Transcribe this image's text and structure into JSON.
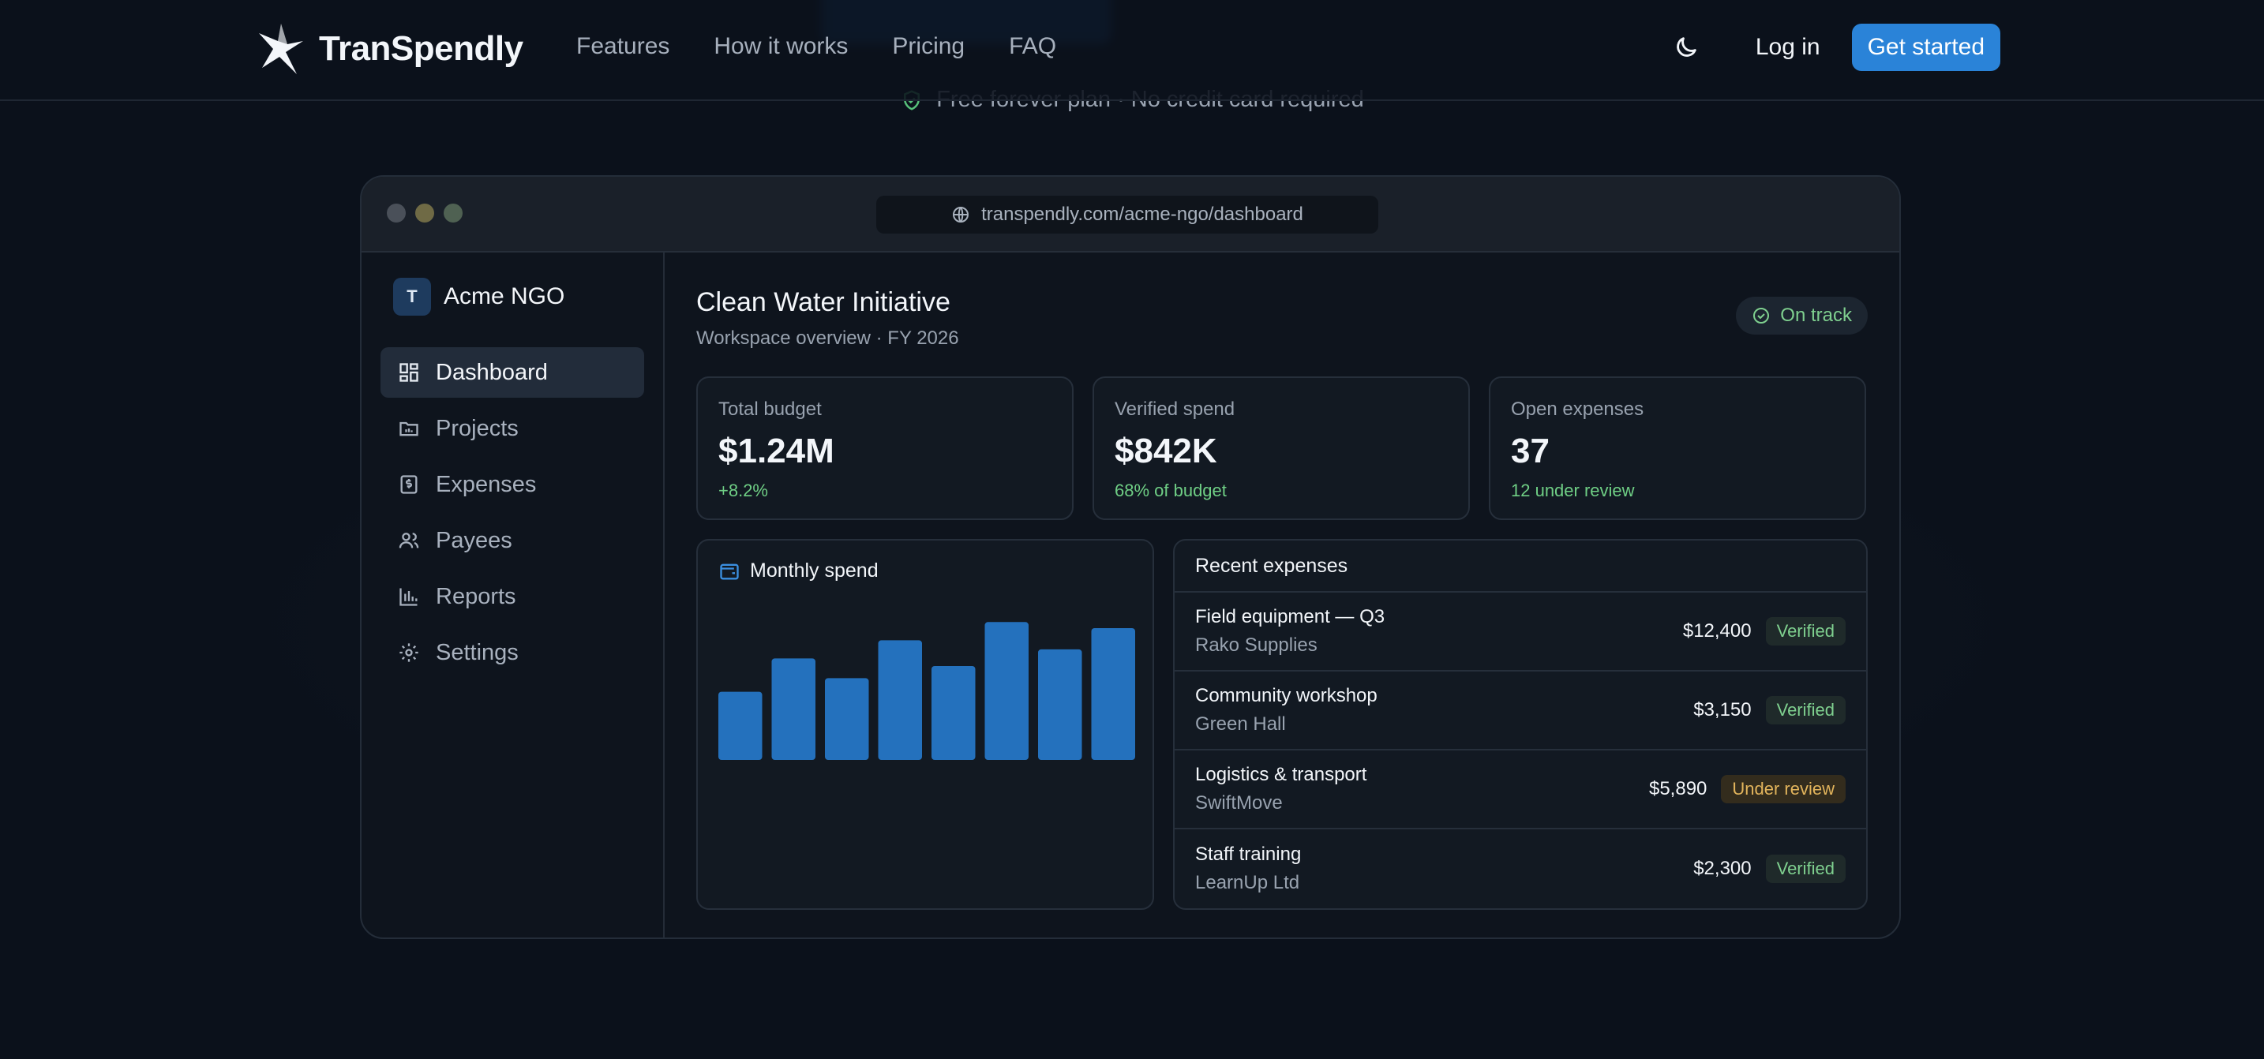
{
  "hero": {
    "free_line": "Free forever plan · No credit card required"
  },
  "nav": {
    "brand": "TranSpendly",
    "links": [
      "Features",
      "How it works",
      "Pricing",
      "FAQ"
    ],
    "login": "Log in",
    "cta": "Get started",
    "theme_icon": "moon-icon"
  },
  "browser": {
    "url": "transpendly.com/acme-ngo/dashboard",
    "dot_colors": [
      "#4a5059",
      "#6f6a45",
      "#4f6152"
    ]
  },
  "sidebar": {
    "org_initial": "T",
    "org_name": "Acme NGO",
    "items": [
      {
        "label": "Dashboard",
        "icon": "dashboard-icon",
        "active": true
      },
      {
        "label": "Projects",
        "icon": "folder-icon",
        "active": false
      },
      {
        "label": "Expenses",
        "icon": "receipt-icon",
        "active": false
      },
      {
        "label": "Payees",
        "icon": "users-icon",
        "active": false
      },
      {
        "label": "Reports",
        "icon": "bar-chart-icon",
        "active": false
      },
      {
        "label": "Settings",
        "icon": "gear-icon",
        "active": false
      }
    ]
  },
  "main": {
    "title": "Clean Water Initiative",
    "subtitle": "Workspace overview · FY 2026",
    "status": "On track",
    "stats": [
      {
        "label": "Total budget",
        "value": "$1.24M",
        "note": "+8.2%"
      },
      {
        "label": "Verified spend",
        "value": "$842K",
        "note": "68% of budget"
      },
      {
        "label": "Open expenses",
        "value": "37",
        "note": "12 under review"
      }
    ],
    "monthly_spend_title": "Monthly spend",
    "recent_title": "Recent expenses",
    "expenses": [
      {
        "title": "Field equipment — Q3",
        "payee": "Rako Supplies",
        "amount": "$12,400",
        "status": "Verified",
        "kind": "ok"
      },
      {
        "title": "Community workshop",
        "payee": "Green Hall",
        "amount": "$3,150",
        "status": "Verified",
        "kind": "ok"
      },
      {
        "title": "Logistics & transport",
        "payee": "SwiftMove",
        "amount": "$5,890",
        "status": "Under review",
        "kind": "review"
      },
      {
        "title": "Staff training",
        "payee": "LearnUp Ltd",
        "amount": "$2,300",
        "status": "Verified",
        "kind": "ok"
      }
    ]
  },
  "chart_data": {
    "type": "bar",
    "values": [
      45,
      67,
      54,
      79,
      62,
      91,
      73,
      87
    ],
    "ylim": [
      0,
      100
    ],
    "color": "#2471bd"
  },
  "colors": {
    "accent": "#2a83d8",
    "ok": "#7fd08f",
    "review": "#e2b45c"
  }
}
